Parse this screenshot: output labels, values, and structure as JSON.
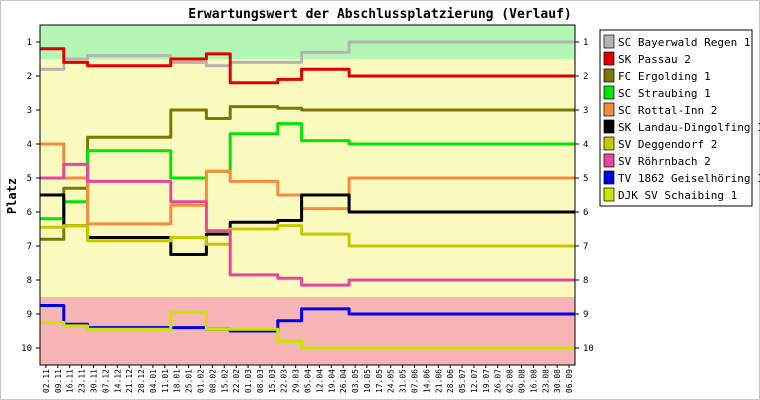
{
  "chart_data": {
    "type": "line",
    "title": "Erwartungswert der Abschlussplatzierung (Verlauf)",
    "ylabel": "Platz",
    "xlabel": "",
    "y_ticks": [
      "1",
      "2",
      "3",
      "4",
      "5",
      "6",
      "7",
      "8",
      "9",
      "10"
    ],
    "ylim": [
      0.5,
      10.5
    ],
    "y_inverted": true,
    "grid": false,
    "legend_position": "right",
    "zones": [
      {
        "from": 0.5,
        "to": 1.5,
        "color": "#b4f7b4"
      },
      {
        "from": 1.5,
        "to": 8.5,
        "color": "#fafabe"
      },
      {
        "from": 8.5,
        "to": 10.5,
        "color": "#f7b4b4"
      }
    ],
    "x": [
      "02.11",
      "09.11",
      "16.11",
      "23.11",
      "30.11",
      "07.12",
      "14.12",
      "21.12",
      "28.12",
      "04.01",
      "11.01",
      "18.01",
      "25.01",
      "01.02",
      "08.02",
      "15.02",
      "22.02",
      "01.03",
      "08.03",
      "15.03",
      "22.03",
      "29.03",
      "05.04",
      "12.04",
      "19.04",
      "26.04",
      "03.05",
      "10.05",
      "17.05",
      "24.05",
      "31.05",
      "07.06",
      "14.06",
      "21.06",
      "28.06",
      "05.07",
      "12.07",
      "19.07",
      "26.07",
      "02.08",
      "09.08",
      "16.08",
      "23.08",
      "30.08",
      "06.09"
    ],
    "series": [
      {
        "name": "SC Bayerwald Regen 1",
        "color": "#b4b4b4",
        "values": [
          1.8,
          1.8,
          1.5,
          1.5,
          1.4,
          1.4,
          1.4,
          1.4,
          1.4,
          1.4,
          1.4,
          1.6,
          1.6,
          1.6,
          1.7,
          1.7,
          1.6,
          1.6,
          1.6,
          1.6,
          1.6,
          1.6,
          1.3,
          1.3,
          1.3,
          1.3,
          1.0,
          1.0,
          1.0,
          1.0,
          1.0,
          1.0,
          1.0,
          1.0,
          1.0,
          1.0,
          1.0,
          1.0,
          1.0,
          1.0,
          1.0,
          1.0,
          1.0,
          1.0,
          1.0
        ]
      },
      {
        "name": "SK Passau 2",
        "color": "#e00000",
        "values": [
          1.2,
          1.2,
          1.6,
          1.6,
          1.7,
          1.7,
          1.7,
          1.7,
          1.7,
          1.7,
          1.7,
          1.5,
          1.5,
          1.5,
          1.35,
          1.35,
          2.2,
          2.2,
          2.2,
          2.2,
          2.1,
          2.1,
          1.8,
          1.8,
          1.8,
          1.8,
          2.0,
          2.0,
          2.0,
          2.0,
          2.0,
          2.0,
          2.0,
          2.0,
          2.0,
          2.0,
          2.0,
          2.0,
          2.0,
          2.0,
          2.0,
          2.0,
          2.0,
          2.0,
          2.0
        ]
      },
      {
        "name": "FC Ergolding 1",
        "color": "#7a7a00",
        "values": [
          6.8,
          6.8,
          5.3,
          5.3,
          3.8,
          3.8,
          3.8,
          3.8,
          3.8,
          3.8,
          3.8,
          3.0,
          3.0,
          3.0,
          3.25,
          3.25,
          2.9,
          2.9,
          2.9,
          2.9,
          2.95,
          2.95,
          3.0,
          3.0,
          3.0,
          3.0,
          3.0,
          3.0,
          3.0,
          3.0,
          3.0,
          3.0,
          3.0,
          3.0,
          3.0,
          3.0,
          3.0,
          3.0,
          3.0,
          3.0,
          3.0,
          3.0,
          3.0,
          3.0,
          3.0
        ]
      },
      {
        "name": "SC Straubing 1",
        "color": "#00e600",
        "values": [
          6.2,
          6.2,
          5.7,
          5.7,
          4.2,
          4.2,
          4.2,
          4.2,
          4.2,
          4.2,
          4.2,
          5.0,
          5.0,
          5.0,
          4.8,
          4.8,
          3.7,
          3.7,
          3.7,
          3.7,
          3.4,
          3.4,
          3.9,
          3.9,
          3.9,
          3.9,
          4.0,
          4.0,
          4.0,
          4.0,
          4.0,
          4.0,
          4.0,
          4.0,
          4.0,
          4.0,
          4.0,
          4.0,
          4.0,
          4.0,
          4.0,
          4.0,
          4.0,
          4.0,
          4.0
        ]
      },
      {
        "name": "SC Rottal-Inn 2",
        "color": "#f58c3c",
        "values": [
          4.0,
          4.0,
          5.0,
          5.0,
          6.35,
          6.35,
          6.35,
          6.35,
          6.35,
          6.35,
          6.35,
          5.8,
          5.8,
          5.8,
          4.8,
          4.8,
          5.1,
          5.1,
          5.1,
          5.1,
          5.5,
          5.5,
          5.9,
          5.9,
          5.9,
          5.9,
          5.0,
          5.0,
          5.0,
          5.0,
          5.0,
          5.0,
          5.0,
          5.0,
          5.0,
          5.0,
          5.0,
          5.0,
          5.0,
          5.0,
          5.0,
          5.0,
          5.0,
          5.0,
          5.0
        ]
      },
      {
        "name": "SK Landau-Dingolfing 1",
        "color": "#000000",
        "values": [
          5.5,
          5.5,
          6.4,
          6.4,
          6.75,
          6.75,
          6.75,
          6.75,
          6.75,
          6.75,
          6.75,
          7.25,
          7.25,
          7.25,
          6.65,
          6.65,
          6.3,
          6.3,
          6.3,
          6.3,
          6.25,
          6.25,
          5.5,
          5.5,
          5.5,
          5.5,
          6.0,
          6.0,
          6.0,
          6.0,
          6.0,
          6.0,
          6.0,
          6.0,
          6.0,
          6.0,
          6.0,
          6.0,
          6.0,
          6.0,
          6.0,
          6.0,
          6.0,
          6.0,
          6.0
        ]
      },
      {
        "name": "SV Deggendorf 2",
        "color": "#c8c800",
        "values": [
          6.45,
          6.45,
          6.4,
          6.4,
          6.85,
          6.85,
          6.85,
          6.85,
          6.85,
          6.85,
          6.85,
          6.75,
          6.75,
          6.75,
          6.95,
          6.95,
          6.5,
          6.5,
          6.5,
          6.5,
          6.4,
          6.4,
          6.65,
          6.65,
          6.65,
          6.65,
          7.0,
          7.0,
          7.0,
          7.0,
          7.0,
          7.0,
          7.0,
          7.0,
          7.0,
          7.0,
          7.0,
          7.0,
          7.0,
          7.0,
          7.0,
          7.0,
          7.0,
          7.0,
          7.0
        ]
      },
      {
        "name": "SV Röhrnbach 2",
        "color": "#e646a0",
        "values": [
          5.0,
          5.0,
          4.6,
          4.6,
          5.1,
          5.1,
          5.1,
          5.1,
          5.1,
          5.1,
          5.1,
          5.7,
          5.7,
          5.7,
          6.55,
          6.55,
          7.85,
          7.85,
          7.85,
          7.85,
          7.95,
          7.95,
          8.15,
          8.15,
          8.15,
          8.15,
          8.0,
          8.0,
          8.0,
          8.0,
          8.0,
          8.0,
          8.0,
          8.0,
          8.0,
          8.0,
          8.0,
          8.0,
          8.0,
          8.0,
          8.0,
          8.0,
          8.0,
          8.0,
          8.0
        ]
      },
      {
        "name": "TV 1862 Geiselhöring 1",
        "color": "#0000e6",
        "values": [
          8.75,
          8.75,
          9.3,
          9.3,
          9.4,
          9.4,
          9.4,
          9.4,
          9.4,
          9.4,
          9.4,
          9.4,
          9.4,
          9.4,
          9.45,
          9.45,
          9.5,
          9.5,
          9.5,
          9.5,
          9.2,
          9.2,
          8.85,
          8.85,
          8.85,
          8.85,
          9.0,
          9.0,
          9.0,
          9.0,
          9.0,
          9.0,
          9.0,
          9.0,
          9.0,
          9.0,
          9.0,
          9.0,
          9.0,
          9.0,
          9.0,
          9.0,
          9.0,
          9.0,
          9.0
        ]
      },
      {
        "name": "DJK SV Schaibing 1",
        "color": "#c8e600",
        "values": [
          9.25,
          9.25,
          9.35,
          9.35,
          9.45,
          9.45,
          9.45,
          9.45,
          9.45,
          9.45,
          9.45,
          8.95,
          8.95,
          8.95,
          9.45,
          9.45,
          9.45,
          9.45,
          9.45,
          9.45,
          9.8,
          9.8,
          10.0,
          10.0,
          10.0,
          10.0,
          10.0,
          10.0,
          10.0,
          10.0,
          10.0,
          10.0,
          10.0,
          10.0,
          10.0,
          10.0,
          10.0,
          10.0,
          10.0,
          10.0,
          10.0,
          10.0,
          10.0,
          10.0,
          10.0
        ]
      }
    ]
  }
}
